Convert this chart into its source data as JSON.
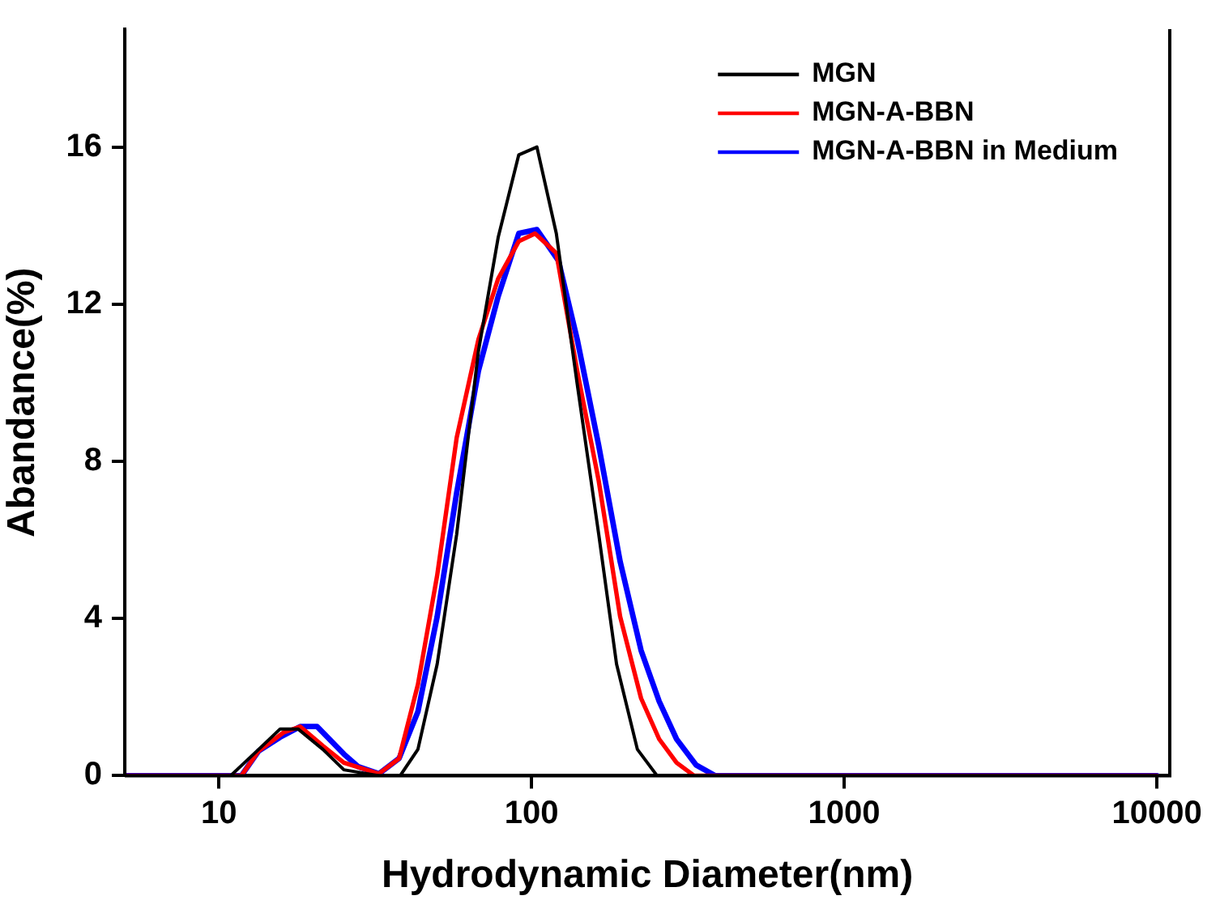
{
  "chart_data": {
    "type": "line",
    "xlabel": "Hydrodynamic Diameter(nm)",
    "ylabel": "Abandance(%)",
    "log": "x",
    "xlim": [
      5,
      11000
    ],
    "xticks": [
      10,
      100,
      1000,
      10000
    ],
    "ylim": [
      0,
      19
    ],
    "yticks": [
      0,
      4,
      8,
      12,
      16
    ],
    "grid": false,
    "legend": "top right",
    "marker": "none",
    "line_style": "solid",
    "series": [
      {
        "name": "MGN",
        "color": "#000000",
        "x": [
          5,
          10.9,
          13.4,
          15.7,
          17.9,
          21.5,
          25.1,
          32.5,
          38,
          43.3,
          49.9,
          57.6,
          67.6,
          78.2,
          91,
          104,
          120,
          140,
          164,
          187,
          218,
          252,
          10000
        ],
        "values": [
          0,
          0,
          0.67,
          1.19,
          1.19,
          0.67,
          0.15,
          0,
          0,
          0.67,
          2.84,
          6.14,
          10.8,
          13.7,
          15.8,
          16.0,
          13.8,
          9.96,
          6.14,
          2.84,
          0.67,
          0,
          0
        ]
      },
      {
        "name": "MGN-A-BBN",
        "color": "#ff0000",
        "x": [
          5,
          11.8,
          13.4,
          16.1,
          18.2,
          21.5,
          25.1,
          32.5,
          37.7,
          43.3,
          49.9,
          57.6,
          67.6,
          78.2,
          91,
          102.6,
          120,
          140,
          164,
          192,
          224,
          256,
          291,
          331,
          10000
        ],
        "values": [
          0,
          0,
          0.63,
          1.1,
          1.25,
          0.76,
          0.33,
          0.05,
          0.44,
          2.32,
          5.1,
          8.6,
          11.1,
          12.65,
          13.6,
          13.8,
          13.3,
          10.3,
          7.5,
          4.05,
          1.97,
          0.93,
          0.33,
          0,
          0
        ]
      },
      {
        "name": "MGN-A-BBN in Medium",
        "color": "#0000ff",
        "x": [
          5,
          11.8,
          13.4,
          15.7,
          18.2,
          20.6,
          25.1,
          27.9,
          32.5,
          37.7,
          43.3,
          49.9,
          57.6,
          67.6,
          78.2,
          91,
          104,
          122,
          140,
          164,
          192,
          224,
          256,
          291,
          336,
          387,
          10000
        ],
        "values": [
          0,
          0,
          0.63,
          0.98,
          1.25,
          1.25,
          0.55,
          0.23,
          0.05,
          0.44,
          1.63,
          4.05,
          7.2,
          10.3,
          12.2,
          13.8,
          13.9,
          13.1,
          11.1,
          8.4,
          5.45,
          3.19,
          1.89,
          0.93,
          0.27,
          0,
          0
        ]
      }
    ]
  }
}
